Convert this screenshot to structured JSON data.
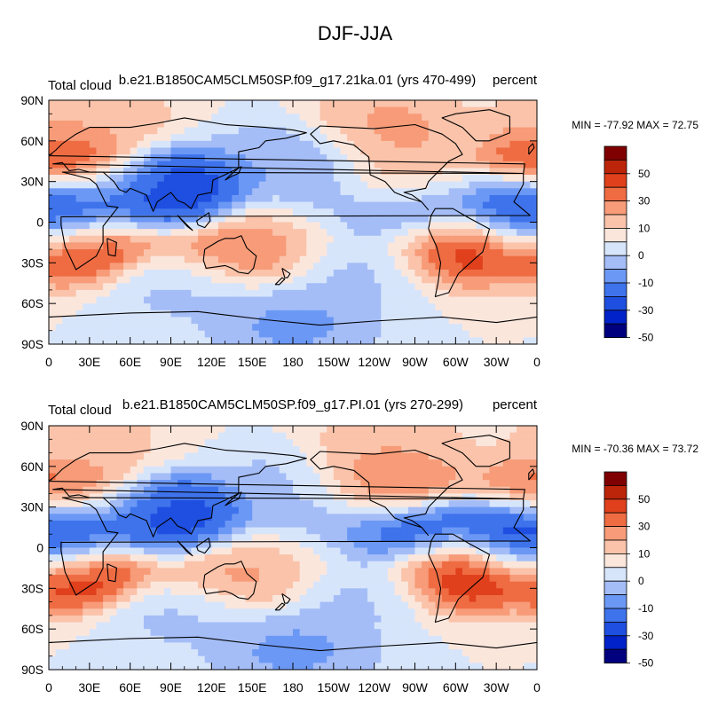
{
  "figure_title": "DJF-JJA",
  "x_tick_labels": [
    "0",
    "30E",
    "60E",
    "90E",
    "120E",
    "150E",
    "180",
    "150W",
    "120W",
    "90W",
    "60W",
    "30W",
    "0"
  ],
  "y_tick_labels": [
    "90N",
    "60N",
    "30N",
    "0",
    "30S",
    "60S",
    "90S"
  ],
  "colorbar_labels": [
    "50",
    "30",
    "10",
    "0",
    "-10",
    "-30",
    "-50"
  ],
  "colors": {
    "level_fills": [
      "#00007f",
      "#0022c8",
      "#1e4fe0",
      "#3e73ec",
      "#6c98f5",
      "#a4bdf7",
      "#d7e5fb",
      "#fbe6dc",
      "#fac3aa",
      "#f79b78",
      "#ef6c43",
      "#e0401c",
      "#bd250a",
      "#7f0000"
    ]
  },
  "chart_data": [
    {
      "type": "heatmap",
      "panel": "top",
      "title_left": "Total cloud",
      "title_center": "b.e21.B1850CAM5CLM50SP.f09_g17.21ka.01 (yrs 470-499)",
      "title_right": "percent",
      "stats": "MIN = -77.92 MAX =  72.75",
      "xlim": [
        0,
        360
      ],
      "ylim": [
        -90,
        90
      ],
      "colorbar_levels": [
        -60,
        -50,
        -40,
        -30,
        -20,
        -10,
        0,
        10,
        20,
        30,
        40,
        50,
        60
      ],
      "field_features": [
        {
          "lon": 15,
          "lat": 40,
          "value": 55
        },
        {
          "lon": 25,
          "lat": -15,
          "value": 60
        },
        {
          "lon": 135,
          "lat": -20,
          "value": 40
        },
        {
          "lon": 300,
          "lat": -15,
          "value": 60
        },
        {
          "lon": 260,
          "lat": 25,
          "value": 35
        },
        {
          "lon": 100,
          "lat": 20,
          "value": -60
        },
        {
          "lon": 70,
          "lat": 25,
          "value": -40
        },
        {
          "lon": 10,
          "lat": 8,
          "value": -55
        },
        {
          "lon": 355,
          "lat": 8,
          "value": -60
        },
        {
          "lon": 270,
          "lat": 10,
          "value": -55
        },
        {
          "lon": 200,
          "lat": 15,
          "value": -25
        },
        {
          "lon": 180,
          "lat": 45,
          "value": -20
        },
        {
          "lon": 170,
          "lat": -5,
          "value": 25
        },
        {
          "lon": 180,
          "lat": -75,
          "value": -25
        },
        {
          "lon": 100,
          "lat": -45,
          "value": -15
        },
        {
          "lon": 230,
          "lat": -30,
          "value": -15
        },
        {
          "lon": 30,
          "lat": 80,
          "value": 20
        },
        {
          "lon": 250,
          "lat": 70,
          "value": 25
        }
      ]
    },
    {
      "type": "heatmap",
      "panel": "bottom",
      "title_left": "Total cloud",
      "title_center": "b.e21.B1850CAM5CLM50SP.f09_g17.PI.01 (yrs 270-299)",
      "title_right": "percent",
      "stats": "MIN = -70.36 MAX =  73.72",
      "xlim": [
        0,
        360
      ],
      "ylim": [
        -90,
        90
      ],
      "colorbar_levels": [
        -60,
        -50,
        -40,
        -30,
        -20,
        -10,
        0,
        10,
        20,
        30,
        40,
        50,
        60
      ],
      "field_features": [
        {
          "lon": 15,
          "lat": 40,
          "value": 45
        },
        {
          "lon": 25,
          "lat": -15,
          "value": 65
        },
        {
          "lon": 135,
          "lat": -20,
          "value": 30
        },
        {
          "lon": 300,
          "lat": -15,
          "value": 65
        },
        {
          "lon": 245,
          "lat": 45,
          "value": 40
        },
        {
          "lon": 100,
          "lat": 20,
          "value": -55
        },
        {
          "lon": 70,
          "lat": 25,
          "value": -40
        },
        {
          "lon": 10,
          "lat": 8,
          "value": -60
        },
        {
          "lon": 355,
          "lat": 8,
          "value": -60
        },
        {
          "lon": 270,
          "lat": 10,
          "value": -55
        },
        {
          "lon": 200,
          "lat": 15,
          "value": -25
        },
        {
          "lon": 180,
          "lat": 45,
          "value": -15
        },
        {
          "lon": 170,
          "lat": -5,
          "value": 20
        },
        {
          "lon": 180,
          "lat": -75,
          "value": -25
        },
        {
          "lon": 100,
          "lat": -45,
          "value": -15
        },
        {
          "lon": 230,
          "lat": -30,
          "value": -15
        },
        {
          "lon": 30,
          "lat": 80,
          "value": 15
        },
        {
          "lon": 250,
          "lat": 70,
          "value": 20
        }
      ]
    }
  ]
}
